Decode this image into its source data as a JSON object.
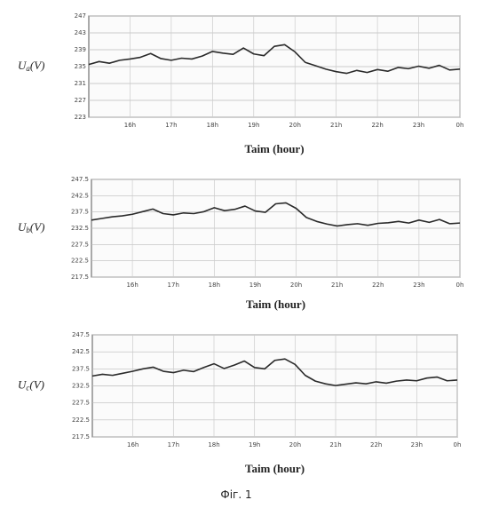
{
  "chart_data": [
    {
      "type": "line",
      "ylabel": [
        "U",
        "a",
        "(V)"
      ],
      "xlabel": "Taim (hour)",
      "color": "#2a2a2a",
      "grid": true,
      "x": [
        15,
        15.25,
        15.5,
        15.75,
        16,
        16.25,
        16.5,
        16.75,
        17,
        17.25,
        17.5,
        17.75,
        18,
        18.25,
        18.5,
        18.75,
        19,
        19.25,
        19.5,
        19.75,
        20,
        20.25,
        20.5,
        20.75,
        21,
        21.25,
        21.5,
        21.75,
        22,
        22.25,
        22.5,
        22.75,
        23,
        23.25,
        23.5,
        23.75,
        24
      ],
      "values": [
        235.5,
        236.2,
        235.8,
        236.5,
        236.8,
        237.2,
        238.1,
        236.9,
        236.5,
        237.0,
        236.8,
        237.5,
        238.6,
        238.2,
        237.9,
        239.4,
        238.0,
        237.6,
        239.8,
        240.2,
        238.5,
        236.0,
        235.2,
        234.4,
        233.8,
        233.4,
        234.1,
        233.6,
        234.3,
        233.9,
        234.8,
        234.5,
        235.1,
        234.6,
        235.3,
        234.2,
        234.4
      ],
      "xlim": [
        15,
        24
      ],
      "xticks": [
        {
          "value": 16,
          "label": "16h"
        },
        {
          "value": 17,
          "label": "17h"
        },
        {
          "value": 18,
          "label": "18h"
        },
        {
          "value": 19,
          "label": "19h"
        },
        {
          "value": 20,
          "label": "20h"
        },
        {
          "value": 21,
          "label": "21h"
        },
        {
          "value": 22,
          "label": "22h"
        },
        {
          "value": 23,
          "label": "23h"
        },
        {
          "value": 24,
          "label": "0h"
        }
      ],
      "ylim": [
        223,
        247
      ],
      "yticks": [
        223,
        227,
        231,
        235,
        239,
        243,
        247
      ]
    },
    {
      "type": "line",
      "ylabel": [
        "U",
        "b",
        "(V)"
      ],
      "xlabel": "Taim (hour)",
      "color": "#2a2a2a",
      "grid": true,
      "x": [
        15,
        15.25,
        15.5,
        15.75,
        16,
        16.25,
        16.5,
        16.75,
        17,
        17.25,
        17.5,
        17.75,
        18,
        18.25,
        18.5,
        18.75,
        19,
        19.25,
        19.5,
        19.75,
        20,
        20.25,
        20.5,
        20.75,
        21,
        21.25,
        21.5,
        21.75,
        22,
        22.25,
        22.5,
        22.75,
        23,
        23.25,
        23.5,
        23.75,
        24
      ],
      "values": [
        235.0,
        235.5,
        236.0,
        236.3,
        236.8,
        237.6,
        238.4,
        237.0,
        236.6,
        237.2,
        237.0,
        237.6,
        238.8,
        237.9,
        238.3,
        239.3,
        237.8,
        237.4,
        240.0,
        240.3,
        238.6,
        235.8,
        234.6,
        233.8,
        233.2,
        233.6,
        233.9,
        233.4,
        234.0,
        234.2,
        234.6,
        234.1,
        235.0,
        234.3,
        235.2,
        233.9,
        234.1
      ],
      "xlim": [
        15,
        24
      ],
      "xticks": [
        {
          "value": 16,
          "label": "16h"
        },
        {
          "value": 17,
          "label": "17h"
        },
        {
          "value": 18,
          "label": "18h"
        },
        {
          "value": 19,
          "label": "19h"
        },
        {
          "value": 20,
          "label": "20h"
        },
        {
          "value": 21,
          "label": "21h"
        },
        {
          "value": 22,
          "label": "22h"
        },
        {
          "value": 23,
          "label": "23h"
        },
        {
          "value": 24,
          "label": "0h"
        }
      ],
      "ylim": [
        217.5,
        247.5
      ],
      "yticks": [
        217.5,
        222.5,
        227.5,
        232.5,
        237.5,
        242.5,
        247.5
      ]
    },
    {
      "type": "line",
      "ylabel": [
        "U",
        "c",
        "(V)"
      ],
      "xlabel": "Taim (hour)",
      "color": "#2a2a2a",
      "grid": true,
      "x": [
        15,
        15.25,
        15.5,
        15.75,
        16,
        16.25,
        16.5,
        16.75,
        17,
        17.25,
        17.5,
        17.75,
        18,
        18.25,
        18.5,
        18.75,
        19,
        19.25,
        19.5,
        19.75,
        20,
        20.25,
        20.5,
        20.75,
        21,
        21.25,
        21.5,
        21.75,
        22,
        22.25,
        22.5,
        22.75,
        23,
        23.25,
        23.5,
        23.75,
        24
      ],
      "values": [
        235.4,
        235.9,
        235.6,
        236.2,
        236.8,
        237.5,
        238.0,
        236.8,
        236.4,
        237.1,
        236.7,
        237.9,
        239.0,
        237.6,
        238.6,
        239.8,
        237.9,
        237.5,
        240.0,
        240.4,
        238.8,
        235.6,
        233.9,
        233.1,
        232.6,
        233.0,
        233.4,
        233.1,
        233.7,
        233.3,
        233.9,
        234.2,
        234.0,
        234.8,
        235.1,
        234.0,
        234.2
      ],
      "xlim": [
        15,
        24
      ],
      "xticks": [
        {
          "value": 16,
          "label": "16h"
        },
        {
          "value": 17,
          "label": "17h"
        },
        {
          "value": 18,
          "label": "18h"
        },
        {
          "value": 19,
          "label": "19h"
        },
        {
          "value": 20,
          "label": "20h"
        },
        {
          "value": 21,
          "label": "21h"
        },
        {
          "value": 22,
          "label": "22h"
        },
        {
          "value": 23,
          "label": "23h"
        },
        {
          "value": 24,
          "label": "0h"
        }
      ],
      "ylim": [
        217.5,
        247.5
      ],
      "yticks": [
        217.5,
        222.5,
        227.5,
        232.5,
        237.5,
        242.5,
        247.5
      ]
    }
  ],
  "caption": "Фіг. 1"
}
